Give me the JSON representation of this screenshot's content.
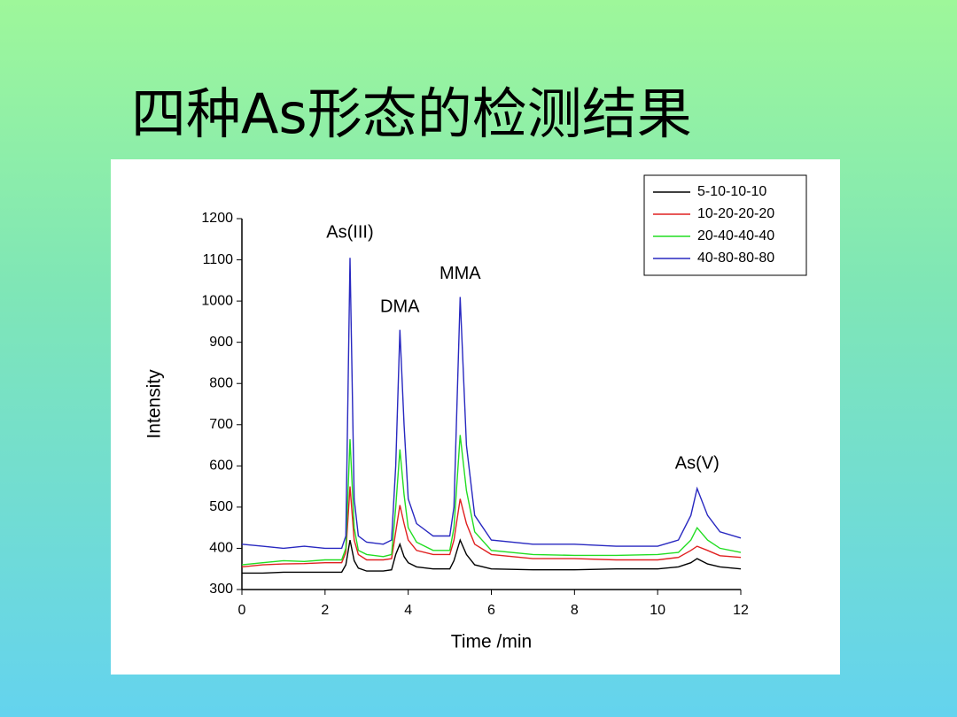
{
  "chart_data": {
    "type": "line",
    "title": "四种As形态的检测结果",
    "x_label": "Time /min",
    "y_label": "Intensity",
    "x": [
      0,
      0.5,
      1,
      1.5,
      2,
      2.4,
      2.5,
      2.6,
      2.7,
      2.8,
      3.0,
      3.4,
      3.6,
      3.7,
      3.8,
      3.9,
      4.0,
      4.2,
      4.6,
      5.0,
      5.1,
      5.25,
      5.4,
      5.6,
      6.0,
      7,
      8,
      9,
      10,
      10.5,
      10.8,
      10.95,
      11.2,
      11.5,
      12
    ],
    "series": [
      {
        "name": "5-10-10-10",
        "color": "#000000",
        "values": [
          340,
          340,
          342,
          342,
          342,
          342,
          360,
          420,
          370,
          352,
          345,
          345,
          348,
          385,
          410,
          380,
          365,
          355,
          350,
          350,
          370,
          420,
          385,
          360,
          350,
          348,
          348,
          350,
          350,
          355,
          365,
          375,
          362,
          355,
          350
        ]
      },
      {
        "name": "10-20-20-20",
        "color": "#e02020",
        "values": [
          355,
          360,
          362,
          363,
          365,
          365,
          390,
          550,
          420,
          385,
          372,
          372,
          375,
          440,
          505,
          460,
          420,
          395,
          385,
          385,
          420,
          520,
          460,
          410,
          385,
          375,
          375,
          372,
          372,
          378,
          395,
          405,
          395,
          382,
          378
        ]
      },
      {
        "name": "20-40-40-40",
        "color": "#22dd22",
        "values": [
          360,
          365,
          370,
          368,
          372,
          372,
          400,
          665,
          450,
          395,
          385,
          380,
          385,
          500,
          640,
          530,
          450,
          415,
          395,
          395,
          450,
          675,
          540,
          440,
          395,
          385,
          383,
          383,
          385,
          390,
          420,
          450,
          420,
          400,
          390
        ]
      },
      {
        "name": "40-80-80-80",
        "color": "#2828c0",
        "values": [
          410,
          405,
          400,
          405,
          400,
          400,
          430,
          1105,
          520,
          430,
          415,
          410,
          420,
          600,
          930,
          700,
          520,
          460,
          430,
          430,
          500,
          1010,
          650,
          480,
          420,
          410,
          410,
          405,
          405,
          420,
          480,
          545,
          480,
          440,
          425
        ]
      }
    ],
    "annotations": [
      {
        "text": "As(III)",
        "x": 2.6,
        "y": 1165
      },
      {
        "text": "DMA",
        "x": 3.8,
        "y": 985
      },
      {
        "text": "MMA",
        "x": 5.25,
        "y": 1065
      },
      {
        "text": "As(V)",
        "x": 10.95,
        "y": 605
      }
    ],
    "xlim": [
      0,
      12
    ],
    "xticks": [
      0,
      2,
      4,
      6,
      8,
      10,
      12
    ],
    "ylim": [
      300,
      1200
    ],
    "yticks": [
      300,
      400,
      500,
      600,
      700,
      800,
      900,
      1000,
      1100,
      1200
    ],
    "legend": "upper right",
    "grid": false
  }
}
